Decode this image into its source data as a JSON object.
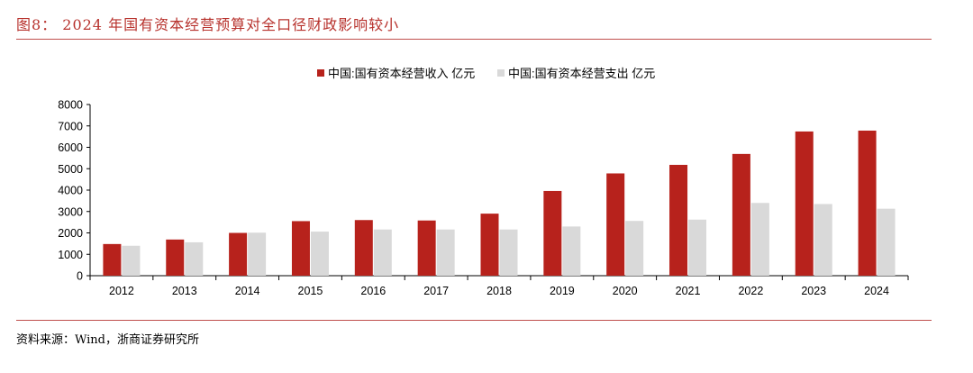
{
  "figure": {
    "title": "图8： 2024 年国有资本经营预算对全口径财政影响较小",
    "source": "资料来源：Wind，浙商证券研究所"
  },
  "chart_data": {
    "type": "bar",
    "title": "",
    "xlabel": "",
    "ylabel": "",
    "categories": [
      "2012",
      "2013",
      "2014",
      "2015",
      "2016",
      "2017",
      "2018",
      "2019",
      "2020",
      "2021",
      "2022",
      "2023",
      "2024"
    ],
    "series": [
      {
        "name": "中国:国有资本经营收入 亿元",
        "color": "#b7221c",
        "values": [
          1480,
          1690,
          2000,
          2550,
          2600,
          2580,
          2900,
          3960,
          4780,
          5180,
          5690,
          6740,
          6780
        ]
      },
      {
        "name": "中国:国有资本经营支出 亿元",
        "color": "#d9d9d9",
        "values": [
          1400,
          1560,
          2010,
          2060,
          2160,
          2160,
          2160,
          2300,
          2560,
          2620,
          3400,
          3350,
          3130
        ]
      }
    ],
    "ylim": [
      0,
      8000
    ],
    "yticks": [
      0,
      1000,
      2000,
      3000,
      4000,
      5000,
      6000,
      7000,
      8000
    ],
    "grid": false,
    "legend_position": "top-center"
  }
}
